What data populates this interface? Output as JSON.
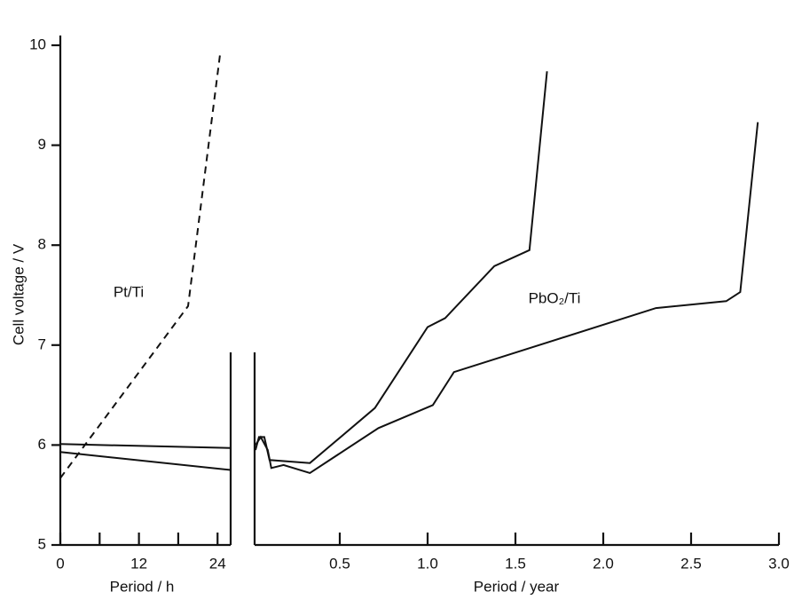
{
  "chart_data": [
    {
      "type": "line",
      "ylabel": "Cell voltage / V",
      "xlabel": "Period / h",
      "annotation": "Pt/Ti",
      "xlim": [
        0,
        26
      ],
      "xticks": [
        0,
        12,
        24
      ],
      "xminorticks": [
        6,
        18
      ],
      "ylim": [
        5,
        10
      ],
      "yticks": [
        5,
        6,
        7,
        8,
        9,
        10
      ],
      "series": [
        {
          "style": "dashed",
          "color": "#111111",
          "x": [
            0,
            19.5,
            24.4
          ],
          "values": [
            5.67,
            7.39,
            9.92
          ]
        },
        {
          "style": "solid",
          "color": "#111111",
          "x": [
            0,
            26
          ],
          "values": [
            6.01,
            5.97
          ]
        },
        {
          "style": "solid",
          "color": "#111111",
          "x": [
            0,
            26
          ],
          "values": [
            5.93,
            5.75
          ]
        }
      ]
    },
    {
      "type": "line",
      "xlabel": "Period / year",
      "annotation": "PbO₂/Ti",
      "xlim": [
        0,
        3.0
      ],
      "xticks": [
        0.5,
        {
          "value": 1,
          "label": "1.0"
        },
        1.5,
        {
          "value": 2,
          "label": "2.0"
        },
        2.5,
        {
          "value": 3,
          "label": "3.0"
        }
      ],
      "ylim": [
        5,
        10
      ],
      "series": [
        {
          "style": "solid",
          "color": "#111111",
          "x": [
            0.02,
            0.04,
            0.07,
            0.1,
            0.33,
            0.7,
            1.0,
            1.1,
            1.38,
            1.58,
            1.68
          ],
          "values": [
            5.95,
            6.08,
            6.08,
            5.85,
            5.82,
            6.37,
            7.18,
            7.27,
            7.79,
            7.95,
            9.74
          ]
        },
        {
          "style": "solid",
          "color": "#111111",
          "x": [
            0.02,
            0.05,
            0.09,
            0.11,
            0.18,
            0.33,
            0.72,
            1.03,
            1.15,
            2.3,
            2.7,
            2.78,
            2.88
          ],
          "values": [
            6.0,
            6.08,
            5.95,
            5.77,
            5.8,
            5.72,
            6.17,
            6.4,
            6.73,
            7.37,
            7.44,
            7.53,
            9.23
          ]
        }
      ]
    }
  ]
}
